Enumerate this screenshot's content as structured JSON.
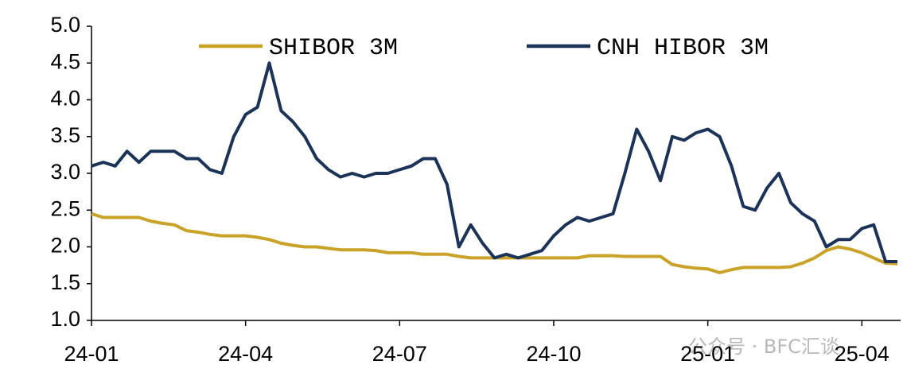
{
  "chart_data": {
    "type": "line",
    "categories": [
      "24-01",
      null,
      null,
      null,
      null,
      null,
      null,
      null,
      null,
      null,
      null,
      null,
      null,
      "24-04",
      null,
      null,
      null,
      null,
      null,
      null,
      null,
      null,
      null,
      null,
      null,
      null,
      "24-07",
      null,
      null,
      null,
      null,
      null,
      null,
      null,
      null,
      null,
      null,
      null,
      null,
      "24-10",
      null,
      null,
      null,
      null,
      null,
      null,
      null,
      null,
      null,
      null,
      null,
      null,
      "25-01",
      null,
      null,
      null,
      null,
      null,
      null,
      null,
      null,
      null,
      null,
      null,
      null,
      "25-04",
      null,
      null,
      null
    ],
    "series": [
      {
        "name": "SHIBOR 3M",
        "color": "#c9a227",
        "values": [
          2.45,
          2.4,
          2.4,
          2.4,
          2.4,
          2.35,
          2.32,
          2.3,
          2.22,
          2.2,
          2.17,
          2.15,
          2.15,
          2.15,
          2.13,
          2.1,
          2.05,
          2.02,
          2.0,
          2.0,
          1.98,
          1.96,
          1.96,
          1.96,
          1.95,
          1.92,
          1.92,
          1.92,
          1.9,
          1.9,
          1.9,
          1.87,
          1.85,
          1.85,
          1.85,
          1.85,
          1.85,
          1.85,
          1.85,
          1.85,
          1.85,
          1.85,
          1.88,
          1.88,
          1.88,
          1.87,
          1.87,
          1.87,
          1.87,
          1.76,
          1.73,
          1.71,
          1.7,
          1.65,
          1.69,
          1.72,
          1.72,
          1.72,
          1.72,
          1.73,
          1.78,
          1.85,
          1.95,
          2.0,
          1.97,
          1.92,
          1.85,
          1.78,
          1.77
        ]
      },
      {
        "name": "CNH HIBOR 3M",
        "color": "#1b3358",
        "values": [
          3.1,
          3.15,
          3.1,
          3.3,
          3.15,
          3.3,
          3.3,
          3.3,
          3.2,
          3.2,
          3.05,
          3.0,
          3.5,
          3.8,
          3.9,
          4.5,
          3.85,
          3.7,
          3.5,
          3.2,
          3.05,
          2.95,
          3.0,
          2.95,
          3.0,
          3.0,
          3.05,
          3.1,
          3.2,
          3.2,
          2.85,
          2.0,
          2.3,
          2.05,
          1.85,
          1.9,
          1.85,
          1.9,
          1.95,
          2.15,
          2.3,
          2.4,
          2.35,
          2.4,
          2.45,
          3.0,
          3.6,
          3.3,
          2.9,
          3.5,
          3.45,
          3.55,
          3.6,
          3.5,
          3.1,
          2.55,
          2.5,
          2.8,
          3.0,
          2.6,
          2.45,
          2.35,
          2.0,
          2.1,
          2.1,
          2.25,
          2.3,
          1.8,
          1.8
        ]
      }
    ],
    "ylim": [
      1.0,
      5.0
    ],
    "yticks": [
      {
        "value": 1.0,
        "label": "1.0"
      },
      1.5,
      {
        "value": 2.0,
        "label": "2.0"
      },
      2.5,
      {
        "value": 3.0,
        "label": "3.0"
      },
      3.5,
      {
        "value": 4.0,
        "label": "4.0"
      },
      4.5,
      {
        "value": 5.0,
        "label": "5.0"
      }
    ],
    "grid": false,
    "legend": "top",
    "watermark": "公众号 · BFC汇谈"
  }
}
